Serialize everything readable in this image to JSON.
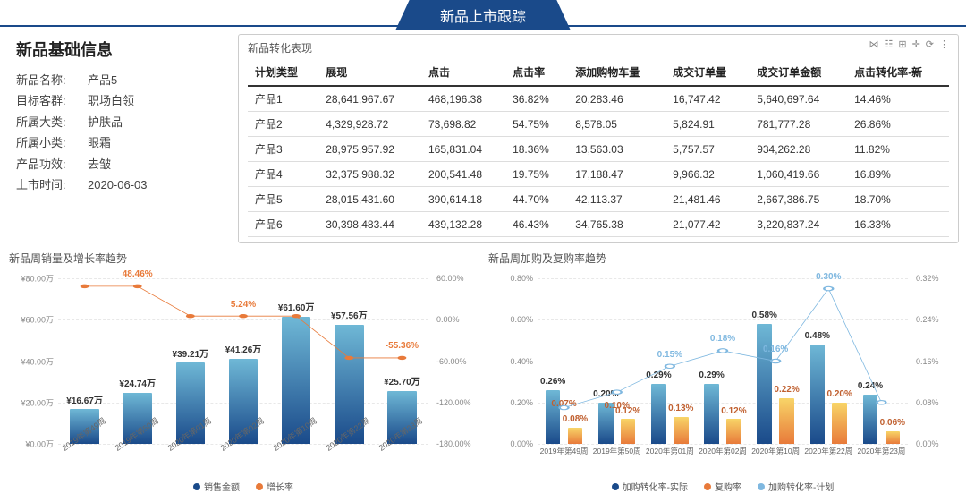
{
  "header": {
    "title": "新品上市跟踪"
  },
  "info": {
    "title": "新品基础信息",
    "rows": [
      {
        "label": "新品名称:",
        "value": "产品5"
      },
      {
        "label": "目标客群:",
        "value": "职场白领"
      },
      {
        "label": "所属大类:",
        "value": "护肤品"
      },
      {
        "label": "所属小类:",
        "value": "眼霜"
      },
      {
        "label": "产品功效:",
        "value": "去皱"
      },
      {
        "label": "上市时间:",
        "value": "2020-06-03"
      }
    ]
  },
  "table": {
    "title": "新品转化表现",
    "toolbar_icons": [
      "link-icon",
      "chart-icon",
      "grid-icon",
      "add-icon",
      "refresh-icon",
      "more-icon"
    ],
    "columns": [
      "计划类型",
      "展现",
      "点击",
      "点击率",
      "添加购物车量",
      "成交订单量",
      "成交订单金额",
      "点击转化率-新"
    ],
    "rows": [
      [
        "产品1",
        "28,641,967.67",
        "468,196.38",
        "36.82%",
        "20,283.46",
        "16,747.42",
        "5,640,697.64",
        "14.46%"
      ],
      [
        "产品2",
        "4,329,928.72",
        "73,698.82",
        "54.75%",
        "8,578.05",
        "5,824.91",
        "781,777.28",
        "26.86%"
      ],
      [
        "产品3",
        "28,975,957.92",
        "165,831.04",
        "18.36%",
        "13,563.03",
        "5,757.57",
        "934,262.28",
        "11.82%"
      ],
      [
        "产品4",
        "32,375,988.32",
        "200,541.48",
        "19.75%",
        "17,188.47",
        "9,966.32",
        "1,060,419.66",
        "16.89%"
      ],
      [
        "产品5",
        "28,015,431.60",
        "390,614.18",
        "44.70%",
        "42,113.37",
        "21,481.46",
        "2,667,386.75",
        "18.70%"
      ],
      [
        "产品6",
        "30,398,483.44",
        "439,132.28",
        "46.43%",
        "34,765.38",
        "21,077.42",
        "3,220,837.24",
        "16.33%"
      ]
    ]
  },
  "chart1": {
    "title": "新品周销量及增长率趋势",
    "categories": [
      "2019年第49周",
      "2019年第50周",
      "2020年第01周",
      "2020年第02周",
      "2020年第10周",
      "2020年第22周",
      "2020年第23周"
    ],
    "bar_values": [
      16.67,
      24.74,
      39.21,
      41.26,
      61.6,
      57.56,
      25.7
    ],
    "bar_labels": [
      "¥16.67万",
      "¥24.74万",
      "¥39.21万",
      "¥41.26万",
      "¥61.60万",
      "¥57.56万",
      "¥25.70万"
    ],
    "line_values": [
      48.46,
      48.46,
      5.24,
      5.24,
      5.24,
      -55.36,
      -55.36
    ],
    "line_labels": [
      "",
      "48.46%",
      "",
      "5.24%",
      "",
      "",
      "-55.36%"
    ],
    "line_label_x_index": [
      1,
      3,
      6
    ],
    "y_left": {
      "min": 0,
      "max": 80,
      "ticks": [
        0,
        20,
        40,
        60,
        80
      ],
      "tick_labels": [
        "¥0.00万",
        "¥20.00万",
        "¥40.00万",
        "¥60.00万",
        "¥80.00万"
      ]
    },
    "y_right": {
      "min": -180,
      "max": 60,
      "ticks": [
        -180,
        -120,
        -60,
        0,
        60
      ],
      "tick_labels": [
        "-180.00%",
        "-120.00%",
        "-60.00%",
        "0.00%",
        "60.00%"
      ]
    },
    "bar_gradient_top": "#6fb8d6",
    "bar_gradient_bottom": "#1a4a8a",
    "line_color": "#e87a3a",
    "legend": [
      {
        "label": "销售金额",
        "color": "#1a4a8a"
      },
      {
        "label": "增长率",
        "color": "#e87a3a"
      }
    ]
  },
  "chart2": {
    "title": "新品周加购及复购率趋势",
    "categories": [
      "2019年第49周",
      "2019年第50周",
      "2020年第01周",
      "2020年第02周",
      "2020年第10周",
      "2020年第22周",
      "2020年第23周"
    ],
    "bar1_values": [
      0.26,
      0.2,
      0.29,
      0.29,
      0.58,
      0.48,
      0.24
    ],
    "bar1_labels": [
      "0.26%",
      "0.20%",
      "0.29%",
      "0.29%",
      "0.58%",
      "0.48%",
      "0.24%"
    ],
    "bar2_values": [
      0.08,
      0.12,
      0.13,
      0.12,
      0.22,
      0.2,
      0.06
    ],
    "bar2_labels": [
      "0.08%",
      "0.12%",
      "0.13%",
      "0.12%",
      "0.22%",
      "0.20%",
      "0.06%"
    ],
    "bar_mid_labels": [
      "0.07%",
      "0.10%",
      "",
      "",
      "",
      "",
      ""
    ],
    "line_values": [
      0.07,
      0.1,
      0.15,
      0.18,
      0.16,
      0.3,
      0.08
    ],
    "line_labels": [
      "",
      "",
      "0.15%",
      "0.18%",
      "0.16%",
      "0.30%",
      ""
    ],
    "y_left": {
      "min": 0,
      "max": 0.8,
      "ticks": [
        0,
        0.2,
        0.4,
        0.6,
        0.8
      ],
      "tick_labels": [
        "0.00%",
        "0.20%",
        "0.40%",
        "0.60%",
        "0.80%"
      ]
    },
    "y_right": {
      "min": 0,
      "max": 0.32,
      "ticks": [
        0,
        0.08,
        0.16,
        0.24,
        0.32
      ],
      "tick_labels": [
        "0.00%",
        "0.08%",
        "0.16%",
        "0.24%",
        "0.32%"
      ]
    },
    "bar1_gradient_top": "#6fb8d6",
    "bar1_gradient_bottom": "#1a4a8a",
    "bar2_gradient_top": "#f8d568",
    "bar2_gradient_bottom": "#e87a3a",
    "line_color": "#7fb8e0",
    "legend": [
      {
        "label": "加购转化率-实际",
        "color": "#1a4a8a"
      },
      {
        "label": "复购率",
        "color": "#e87a3a"
      },
      {
        "label": "加购转化率-计划",
        "color": "#7fb8e0"
      }
    ]
  }
}
